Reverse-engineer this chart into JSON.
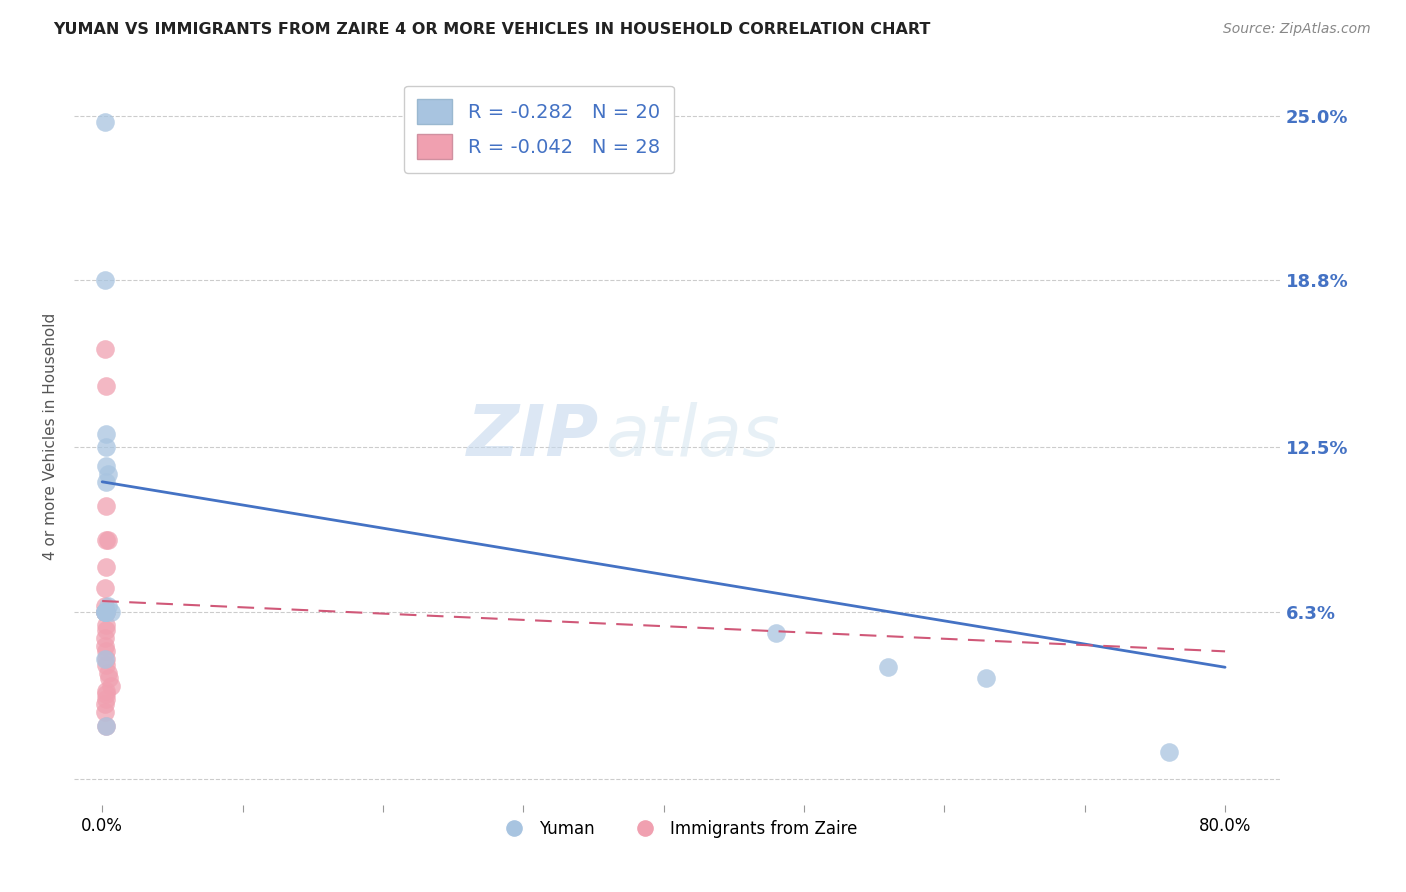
{
  "title": "YUMAN VS IMMIGRANTS FROM ZAIRE 4 OR MORE VEHICLES IN HOUSEHOLD CORRELATION CHART",
  "source": "Source: ZipAtlas.com",
  "ylabel": "4 or more Vehicles in Household",
  "ytick_values": [
    0.0,
    0.063,
    0.125,
    0.188,
    0.25
  ],
  "ytick_labels": [
    "",
    "6.3%",
    "12.5%",
    "18.8%",
    "25.0%"
  ],
  "xlim": [
    -0.02,
    0.84
  ],
  "ylim": [
    -0.01,
    0.268
  ],
  "legend_r1": "R = -0.282   N = 20",
  "legend_r2": "R = -0.042   N = 28",
  "legend_label1": "Yuman",
  "legend_label2": "Immigrants from Zaire",
  "blue_color": "#a8c4e0",
  "pink_color": "#f0a0b0",
  "line_blue": "#4472c4",
  "line_pink": "#d05878",
  "yuman_x": [
    0.002,
    0.002,
    0.003,
    0.004,
    0.003,
    0.003,
    0.002,
    0.003,
    0.004,
    0.006,
    0.002,
    0.003,
    0.002,
    0.003,
    0.003,
    0.48,
    0.56,
    0.63,
    0.76,
    0.002
  ],
  "yuman_y": [
    0.248,
    0.188,
    0.13,
    0.115,
    0.125,
    0.118,
    0.063,
    0.063,
    0.065,
    0.063,
    0.063,
    0.063,
    0.045,
    0.02,
    0.112,
    0.055,
    0.042,
    0.038,
    0.01,
    0.063
  ],
  "zaire_x": [
    0.002,
    0.003,
    0.003,
    0.003,
    0.004,
    0.002,
    0.002,
    0.002,
    0.003,
    0.002,
    0.003,
    0.003,
    0.002,
    0.002,
    0.003,
    0.003,
    0.003,
    0.004,
    0.005,
    0.006,
    0.003,
    0.003,
    0.003,
    0.002,
    0.002,
    0.003,
    0.003,
    0.003
  ],
  "zaire_y": [
    0.162,
    0.148,
    0.103,
    0.09,
    0.09,
    0.072,
    0.065,
    0.063,
    0.063,
    0.063,
    0.058,
    0.056,
    0.053,
    0.05,
    0.048,
    0.045,
    0.043,
    0.04,
    0.038,
    0.035,
    0.033,
    0.032,
    0.03,
    0.028,
    0.025,
    0.02,
    0.063,
    0.08
  ],
  "blue_line_x": [
    0.0,
    0.8
  ],
  "blue_line_y": [
    0.112,
    0.042
  ],
  "pink_line_x": [
    0.0,
    0.8
  ],
  "pink_line_y": [
    0.067,
    0.048
  ],
  "watermark_zip": "ZIP",
  "watermark_atlas": "atlas",
  "background_color": "#ffffff"
}
